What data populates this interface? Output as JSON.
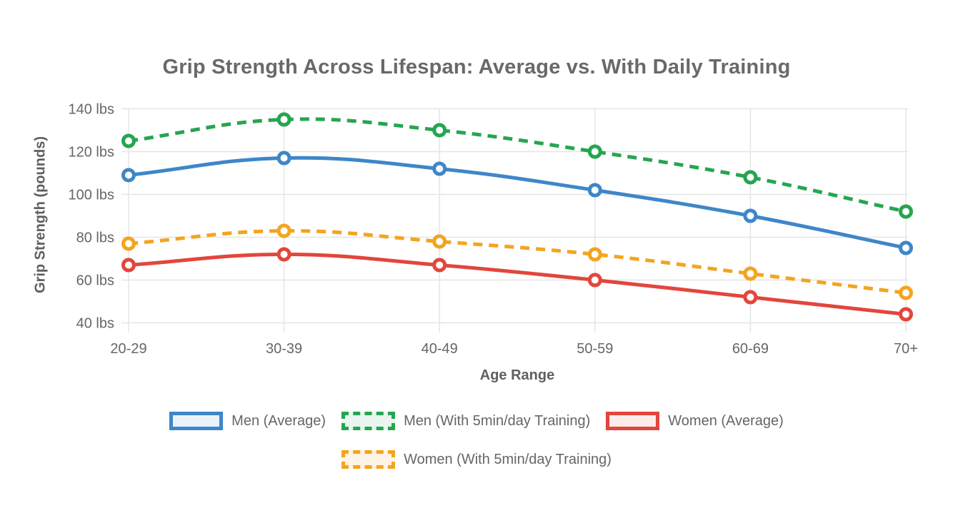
{
  "chart_data": {
    "type": "line",
    "title": "Grip Strength Across Lifespan: Average vs. With Daily Training",
    "xlabel": "Age Range",
    "ylabel": "Grip Strength (pounds)",
    "categories": [
      "20-29",
      "30-39",
      "40-49",
      "50-59",
      "60-69",
      "70+"
    ],
    "y_ticks": [
      140,
      120,
      100,
      80,
      60,
      40
    ],
    "y_tick_labels": [
      "140 lbs",
      "120 lbs",
      "100 lbs",
      "80 lbs",
      "60 lbs",
      "40 lbs"
    ],
    "ylim": [
      40,
      140
    ],
    "grid": true,
    "legend_position": "bottom",
    "series": [
      {
        "name": "Men (Average)",
        "color": "#3e86c8",
        "tint": "#e9f1f9",
        "style": "solid",
        "values": [
          109,
          117,
          112,
          102,
          90,
          75
        ]
      },
      {
        "name": "Men (With 5min/day Training)",
        "color": "#26a550",
        "tint": "#e9f5ee",
        "style": "dashed",
        "values": [
          125,
          135,
          130,
          120,
          108,
          92
        ]
      },
      {
        "name": "Women (Average)",
        "color": "#e2463c",
        "tint": "#fcecea",
        "style": "solid",
        "values": [
          67,
          72,
          67,
          60,
          52,
          44
        ]
      },
      {
        "name": "Women (With 5min/day Training)",
        "color": "#f4a41f",
        "tint": "#fef3e4",
        "style": "dashed",
        "values": [
          77,
          83,
          78,
          72,
          63,
          54
        ]
      }
    ],
    "legend_rows": [
      [
        0,
        1,
        2
      ],
      [
        3
      ]
    ],
    "colors": {
      "title_text": "#696969",
      "axis_text": "#666666",
      "grid": "#e5e5e5"
    }
  }
}
